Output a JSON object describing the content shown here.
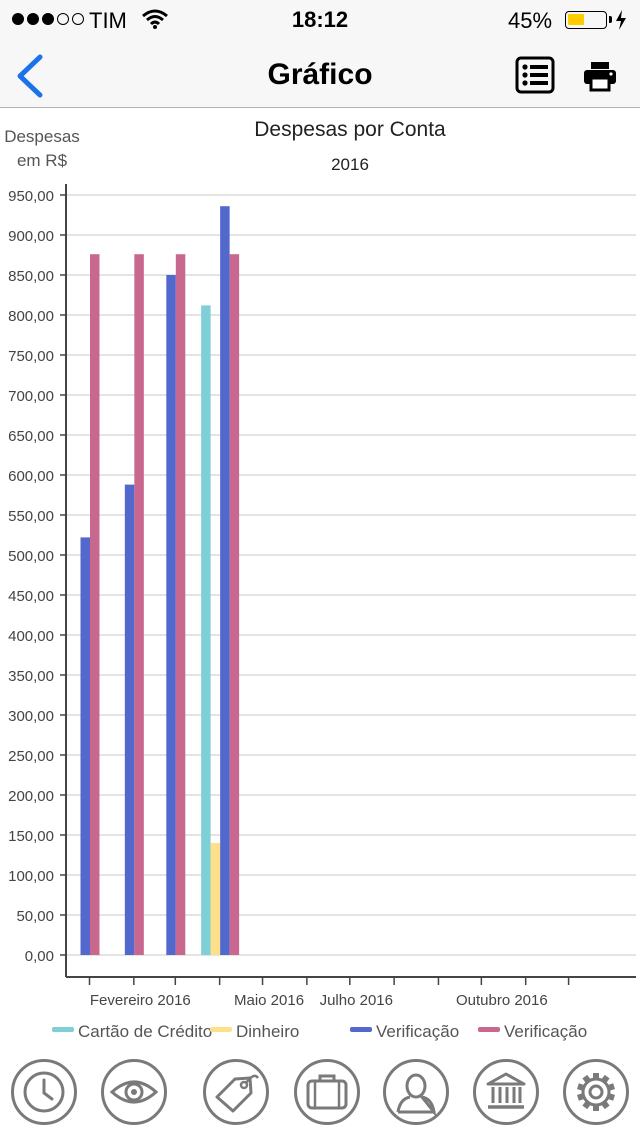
{
  "status_bar": {
    "carrier": "TIM",
    "time": "18:12",
    "battery_percent": "45%",
    "battery_level": 0.45,
    "signal_bars_filled": 3,
    "signal_bars_total": 5
  },
  "nav": {
    "title": "Gráfico",
    "back_icon": "chevron-left-icon",
    "list_icon": "list-icon",
    "print_icon": "printer-icon"
  },
  "chart_data": {
    "type": "bar",
    "title": "Despesas por Conta",
    "subtitle": "2016",
    "ylabel_lines": [
      "Despesas",
      "em R$"
    ],
    "ylim": [
      0,
      950
    ],
    "ytick_step": 50,
    "ytick_labels": [
      "0,00",
      "50,00",
      "100,00",
      "150,00",
      "200,00",
      "250,00",
      "300,00",
      "350,00",
      "400,00",
      "450,00",
      "500,00",
      "550,00",
      "600,00",
      "650,00",
      "700,00",
      "750,00",
      "800,00",
      "850,00",
      "900,00",
      "950,00"
    ],
    "grid": true,
    "legend_position": "bottom",
    "x_range": [
      "2016-01-01",
      "2016-12-31"
    ],
    "x_tick_labels": [
      {
        "date": "2016-02-01",
        "label": "Fevereiro 2016"
      },
      {
        "date": "2016-05-01",
        "label": "Maio 2016"
      },
      {
        "date": "2016-07-01",
        "label": "Julho 2016"
      },
      {
        "date": "2016-10-01",
        "label": "Outubro 2016"
      }
    ],
    "x_minor_ticks": [
      "2016-01-01",
      "2016-02-01",
      "2016-03-01",
      "2016-04-01",
      "2016-05-01",
      "2016-06-01",
      "2016-07-01",
      "2016-08-01",
      "2016-09-01",
      "2016-10-01",
      "2016-11-01",
      "2016-12-01"
    ],
    "series": [
      {
        "name": "Cartão de Crédito",
        "color": "#7fcfd6",
        "points": [
          {
            "date": "2016-04-01",
            "value": 812
          }
        ]
      },
      {
        "name": "Dinheiro",
        "color": "#ffe08a",
        "points": [
          {
            "date": "2016-04-01",
            "value": 140
          }
        ]
      },
      {
        "name": "Verificação",
        "color": "#5268cc",
        "points": [
          {
            "date": "2016-01-01",
            "value": 522
          },
          {
            "date": "2016-02-01",
            "value": 588
          },
          {
            "date": "2016-03-01",
            "value": 850
          },
          {
            "date": "2016-04-01",
            "value": 936
          }
        ]
      },
      {
        "name": "Verificação",
        "color": "#c9688f",
        "points": [
          {
            "date": "2016-01-01",
            "value": 876
          },
          {
            "date": "2016-02-01",
            "value": 876
          },
          {
            "date": "2016-03-01",
            "value": 876
          },
          {
            "date": "2016-04-01",
            "value": 876
          }
        ]
      }
    ]
  },
  "tab_bar": {
    "tabs": [
      {
        "icon": "clock-icon"
      },
      {
        "icon": "eye-icon"
      },
      {
        "icon": "tag-icon"
      },
      {
        "icon": "suitcase-icon"
      },
      {
        "icon": "person-icon"
      },
      {
        "icon": "bank-icon"
      },
      {
        "icon": "gear-icon"
      }
    ]
  }
}
